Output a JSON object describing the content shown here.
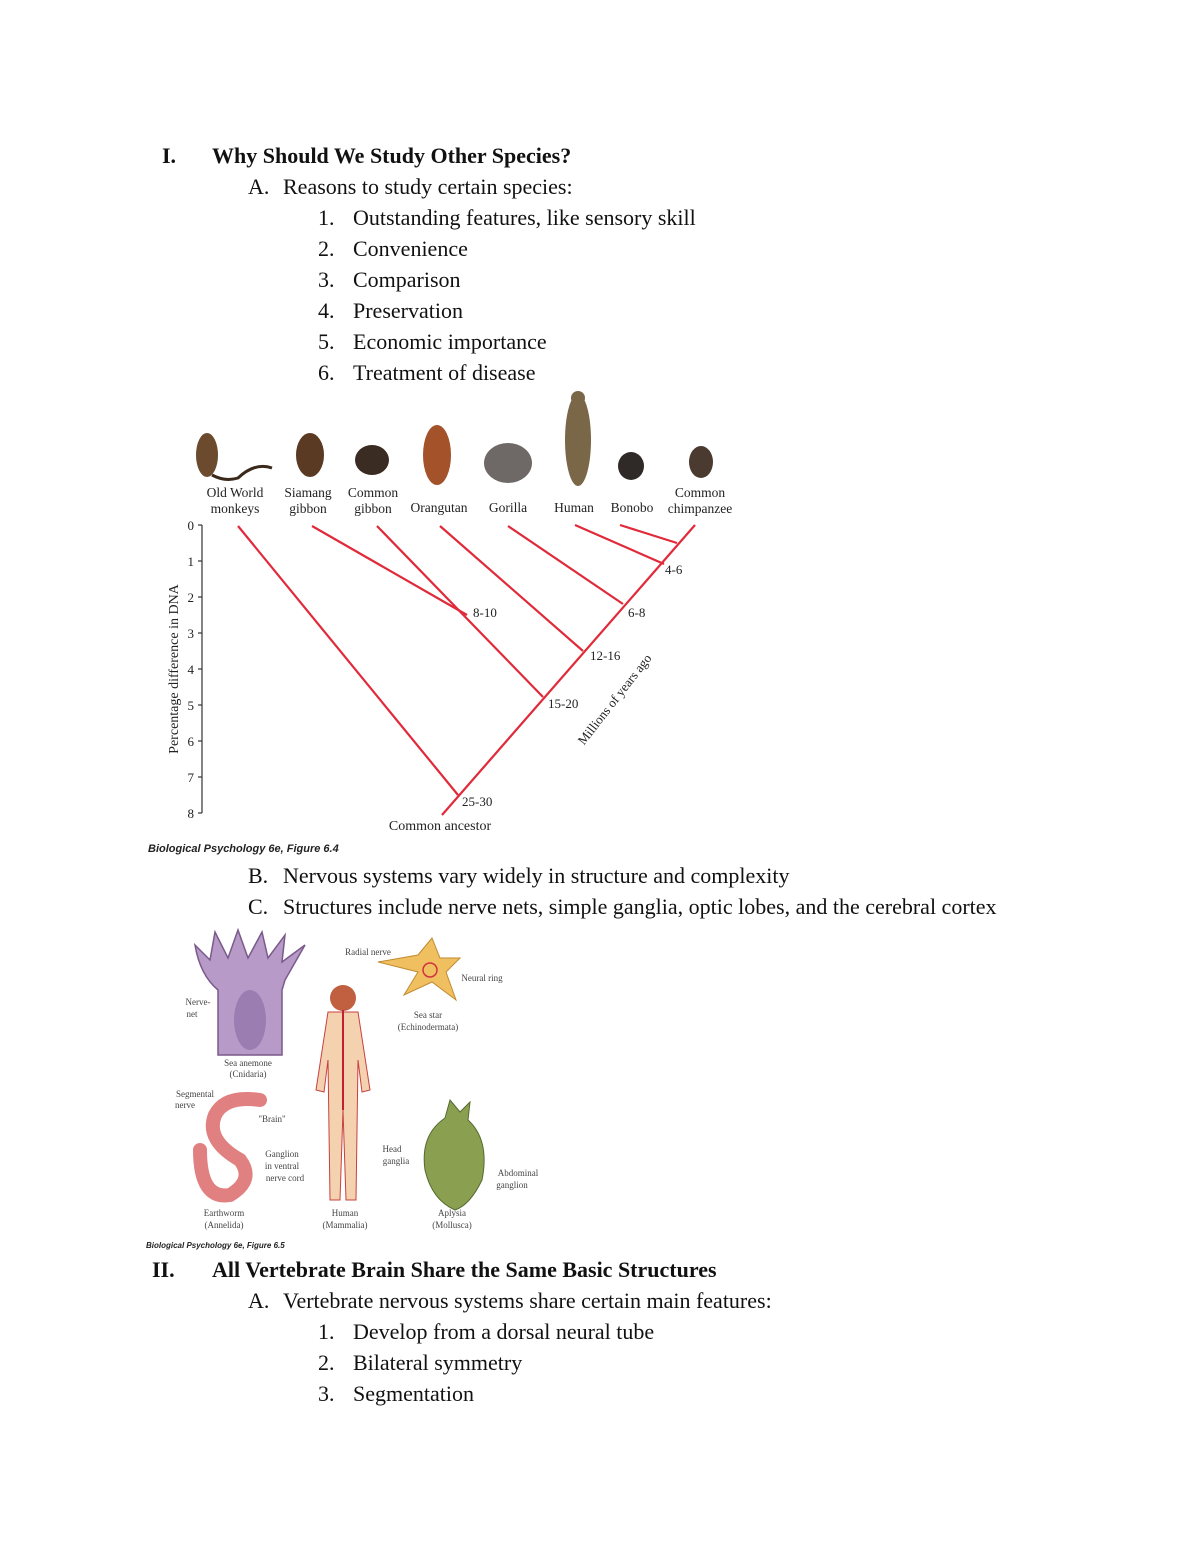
{
  "section1": {
    "numeral": "I.",
    "title": "Why Should We Study Other Species?",
    "a": {
      "letter": "A.",
      "text": "Reasons to study certain species:"
    },
    "reasons": [
      {
        "n": "1.",
        "text": "Outstanding features, like sensory skill"
      },
      {
        "n": "2.",
        "text": "Convenience"
      },
      {
        "n": "3.",
        "text": "Comparison"
      },
      {
        "n": "4.",
        "text": "Preservation"
      },
      {
        "n": "5.",
        "text": "Economic importance"
      },
      {
        "n": "6.",
        "text": "Treatment of disease"
      }
    ],
    "b": {
      "letter": "B.",
      "text": "Nervous systems vary widely in structure and complexity"
    },
    "c": {
      "letter": "C.",
      "text": "Structures include nerve nets, simple ganglia, optic lobes, and the cerebral cortex"
    }
  },
  "figure1": {
    "caption": "Biological Psychology 6e, Figure 6.4",
    "species": [
      {
        "line1": "Old World",
        "line2": "monkeys"
      },
      {
        "line1": "Siamang",
        "line2": "gibbon"
      },
      {
        "line1": "Common",
        "line2": "gibbon"
      },
      {
        "line1": "",
        "line2": "Orangutan"
      },
      {
        "line1": "",
        "line2": "Gorilla"
      },
      {
        "line1": "",
        "line2": "Human"
      },
      {
        "line1": "",
        "line2": "Bonobo"
      },
      {
        "line1": "Common",
        "line2": "chimpanzee"
      }
    ],
    "yaxis_label": "Percentage difference in DNA",
    "yticks": [
      "0",
      "1",
      "2",
      "3",
      "4",
      "5",
      "6",
      "7",
      "8"
    ],
    "divergence_labels": [
      "4-6",
      "6-8",
      "8-10",
      "12-16",
      "15-20",
      "25-30"
    ],
    "diagonal_label": "Millions of years ago",
    "root_label": "Common ancestor",
    "line_color": "#e02a3a"
  },
  "figure2": {
    "caption": "Biological Psychology 6e, Figure 6.5",
    "labels": {
      "nerve_net": [
        "Nerve-",
        "net"
      ],
      "sea_anemone": [
        "Sea anemone",
        "(Cnidaria)"
      ],
      "radial_nerve": "Radial nerve",
      "neural_ring": "Neural ring",
      "sea_star": [
        "Sea star",
        "(Echinodermata)"
      ],
      "segmental_nerve": [
        "Segmental",
        "nerve"
      ],
      "brain": "\"Brain\"",
      "ganglion": [
        "Ganglion",
        "in ventral",
        "nerve cord"
      ],
      "earthworm": [
        "Earthworm",
        "(Annelida)"
      ],
      "human": [
        "Human",
        "(Mammalia)"
      ],
      "head_ganglia": [
        "Head",
        "ganglia"
      ],
      "abdominal_ganglion": [
        "Abdominal",
        "ganglion"
      ],
      "aplysia": [
        "Aplysia",
        "(Mollusca)"
      ]
    }
  },
  "section2": {
    "numeral": "II.",
    "title": "All Vertebrate Brain Share the Same Basic Structures",
    "a": {
      "letter": "A.",
      "text": "Vertebrate nervous systems share certain main features:"
    },
    "features": [
      {
        "n": "1.",
        "text": "Develop from a dorsal neural tube"
      },
      {
        "n": "2.",
        "text": "Bilateral symmetry"
      },
      {
        "n": "3.",
        "text": "Segmentation"
      }
    ]
  }
}
